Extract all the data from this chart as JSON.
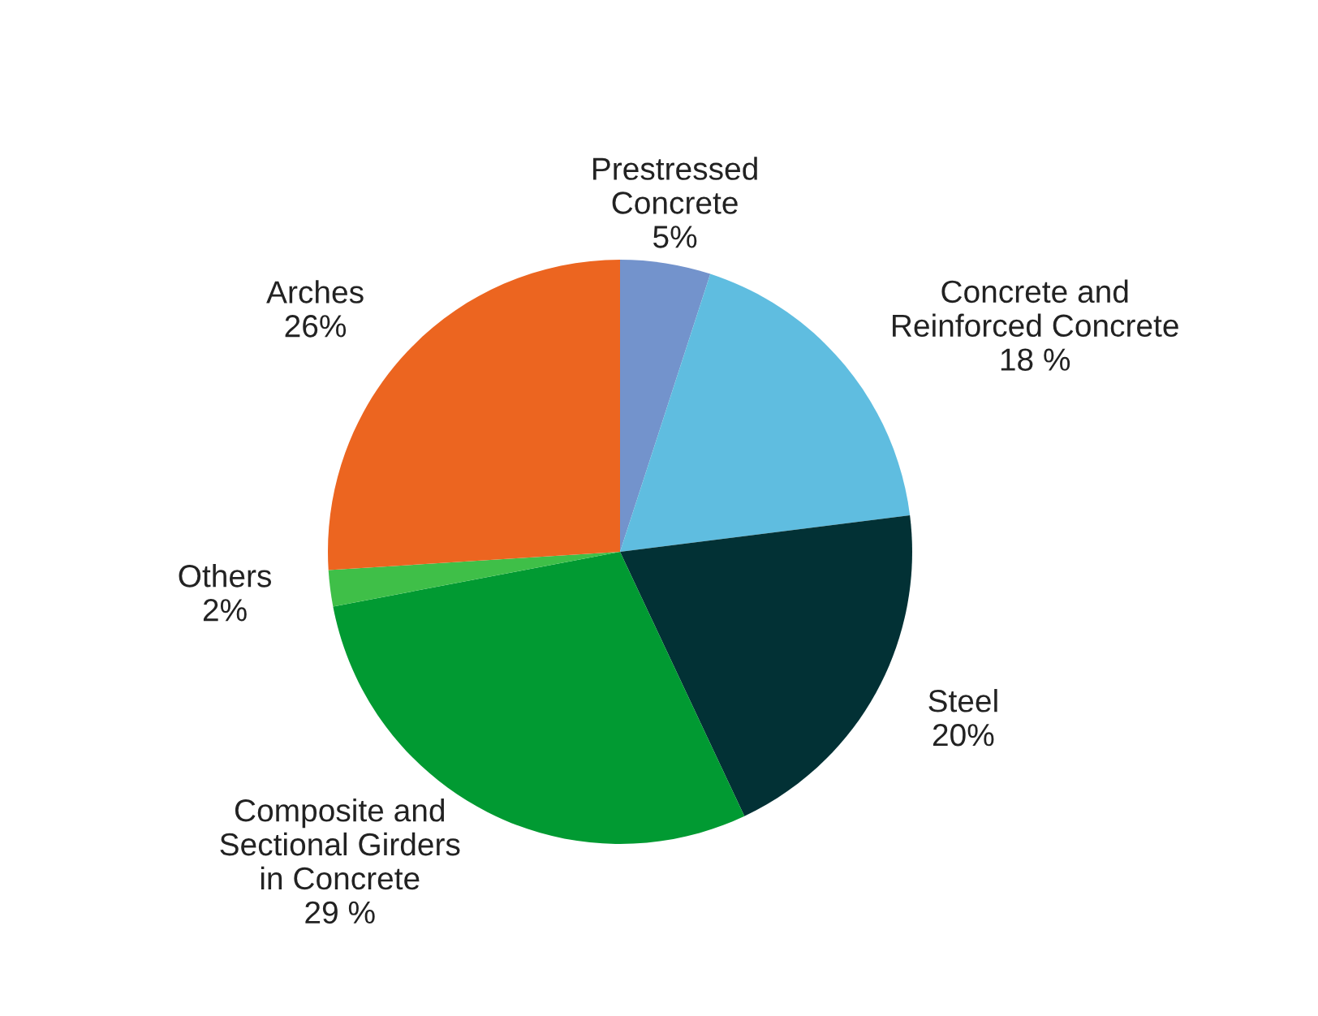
{
  "chart_data": {
    "type": "pie",
    "categories": [
      "Prestressed\nConcrete",
      "Concrete and\nReinforced Concrete",
      "Steel",
      "Composite and\nSectional Girders\nin Concrete",
      "Others",
      "Arches"
    ],
    "values": [
      5,
      18,
      20,
      29,
      2,
      26
    ],
    "value_labels": [
      "5%",
      "18 %",
      "20%",
      "29 %",
      "2%",
      "26%"
    ],
    "colors": [
      "#7393cc",
      "#5fbde0",
      "#023135",
      "#019a32",
      "#3fbf48",
      "#ec6520"
    ],
    "legend": false
  }
}
